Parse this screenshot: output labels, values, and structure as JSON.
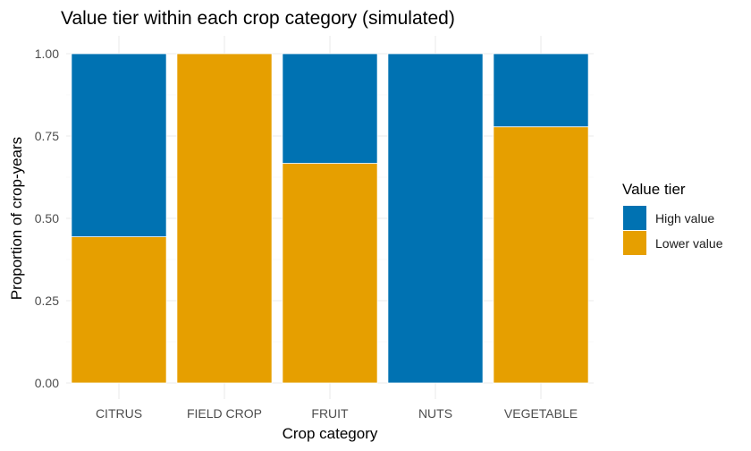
{
  "chart_data": {
    "type": "bar",
    "stacked": true,
    "title": "Value tier within each crop category (simulated)",
    "xlabel": "Crop category",
    "ylabel": "Proportion of crop-years",
    "categories": [
      "CITRUS",
      "FIELD CROP",
      "FRUIT",
      "NUTS",
      "VEGETABLE"
    ],
    "ylim": [
      0,
      1
    ],
    "yticks": [
      0,
      0.25,
      0.5,
      0.75,
      1
    ],
    "ytick_labels": [
      "0.00",
      "0.25",
      "0.50",
      "0.75",
      "1.00"
    ],
    "grid": true,
    "legend": {
      "title": "Value tier",
      "position": "right",
      "entries": [
        "High value",
        "Lower value"
      ]
    },
    "series": [
      {
        "name": "Lower value",
        "color": "#E69F00",
        "values": [
          0.444,
          1.0,
          0.667,
          0.0,
          0.778
        ]
      },
      {
        "name": "High value",
        "color": "#0072B2",
        "values": [
          0.556,
          0.0,
          0.333,
          1.0,
          0.222
        ]
      }
    ]
  }
}
